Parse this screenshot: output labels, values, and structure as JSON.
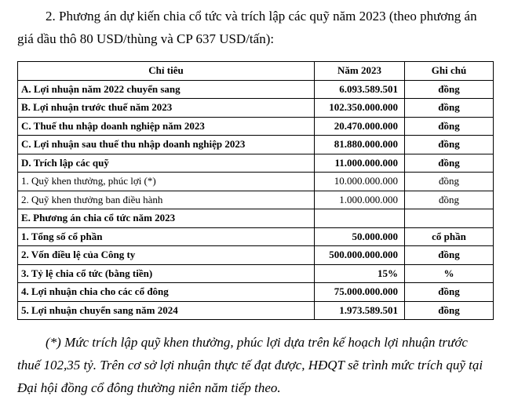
{
  "heading": {
    "line1": "2. Phương án dự kiến chia cổ tức và trích lập các quỹ năm 2023 (theo phương án",
    "line2": "giá dầu thô 80 USD/thùng và CP 637 USD/tấn):"
  },
  "table": {
    "header": [
      "Chỉ tiêu",
      "Năm 2023",
      "Ghi chú"
    ],
    "rows": [
      {
        "label": "A. Lợi nhuận năm 2022 chuyển sang",
        "value": "6.093.589.501",
        "unit": "đồng",
        "bold": true
      },
      {
        "label": "B. Lợi nhuận trước thuế năm 2023",
        "value": "102.350.000.000",
        "unit": "đồng",
        "bold": true
      },
      {
        "label": "C. Thuế thu nhập doanh nghiệp năm 2023",
        "value": "20.470.000.000",
        "unit": "đồng",
        "bold": true
      },
      {
        "label": "C. Lợi nhuận sau thuế thu nhập doanh nghiệp 2023",
        "value": "81.880.000.000",
        "unit": "đồng",
        "bold": true
      },
      {
        "label": "D. Trích lập các quỹ",
        "value": "11.000.000.000",
        "unit": "đồng",
        "bold": true
      },
      {
        "label": "1. Quỹ khen thưởng, phúc lợi (*)",
        "value": "10.000.000.000",
        "unit": "đồng",
        "bold": false
      },
      {
        "label": "2. Quỹ khen thưởng ban điều hành",
        "value": "1.000.000.000",
        "unit": "đồng",
        "bold": false
      },
      {
        "label": "E. Phương án chia cổ tức năm 2023",
        "bold": true
      },
      {
        "label": "1. Tổng số cổ phần",
        "value": "50.000.000",
        "unit": "cổ phần",
        "bold": true
      },
      {
        "label": "2. Vốn điều lệ của Công ty",
        "value": "500.000.000.000",
        "unit": "đồng",
        "bold": true
      },
      {
        "label": "3. Tỷ lệ chia cổ tức (bằng tiền)",
        "value": "15%",
        "unit": "%",
        "bold": true
      },
      {
        "label": "4. Lợi nhuận chia cho các cổ đông",
        "value": "75.000.000.000",
        "unit": "đồng",
        "bold": true
      },
      {
        "label": "5. Lợi nhuận chuyển sang năm 2024",
        "value": "1.973.589.501",
        "unit": "đồng",
        "bold": true
      }
    ]
  },
  "footnote": {
    "line1": "(*) Mức trích lập quỹ khen thưởng, phúc lợi dựa trên kế hoạch lợi nhuận trước",
    "line2": "thuế 102,35 tỷ. Trên cơ sở lợi nhuận thực tế đạt được, HĐQT sẽ trình mức trích quỹ tại",
    "line3": "Đại hội đồng cổ đông thường niên năm tiếp theo."
  }
}
